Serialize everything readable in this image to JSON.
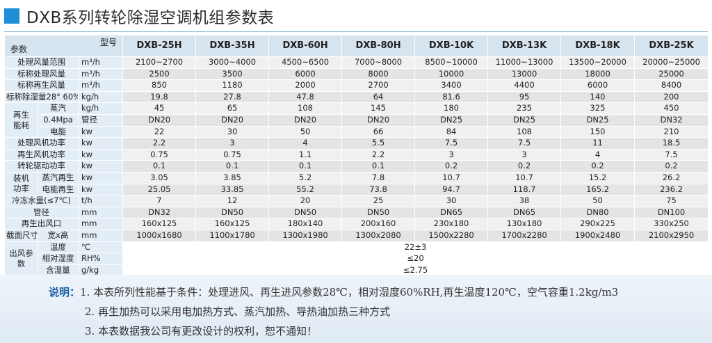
{
  "title": "DXB系列转轮除湿空调机组参数表",
  "header": {
    "param_label": "参数",
    "model_label": "型号",
    "models": [
      "DXB-25H",
      "DXB-35H",
      "DXB-60H",
      "DXB-80H",
      "DXB-10K",
      "DXB-13K",
      "DXB-18K",
      "DXB-25K"
    ]
  },
  "rows": [
    {
      "label": "处理风量范围",
      "unit": "m³/h",
      "values": [
        "2100~2700",
        "3000~4000",
        "4500~6500",
        "7000~8000",
        "8500~10000",
        "11000~13000",
        "13500~20000",
        "20000~25000"
      ]
    },
    {
      "label": "标称处理风量",
      "unit": "m³/h",
      "values": [
        "2500",
        "3500",
        "6000",
        "8000",
        "10000",
        "13000",
        "18000",
        "25000"
      ]
    },
    {
      "label": "标称再生风量",
      "unit": "m³/h",
      "values": [
        "850",
        "1180",
        "2000",
        "2700",
        "3400",
        "4400",
        "6000",
        "8400"
      ]
    },
    {
      "label": "标称除湿量28° 60%",
      "unit": "kg/h",
      "values": [
        "19.8",
        "27.8",
        "47.8",
        "64",
        "81.6",
        "95",
        "140",
        "200"
      ]
    },
    {
      "group": "再生\n能耗",
      "sub": "蒸汽",
      "unit": "kg/h",
      "values": [
        "45",
        "65",
        "108",
        "145",
        "180",
        "235",
        "325",
        "450"
      ]
    },
    {
      "sub": "0.4Mpa",
      "unit": "管径",
      "values": [
        "DN20",
        "DN20",
        "DN20",
        "DN20",
        "DN25",
        "DN25",
        "DN25",
        "DN32"
      ]
    },
    {
      "sub": "电能",
      "unit": "kw",
      "values": [
        "22",
        "30",
        "50",
        "66",
        "84",
        "108",
        "150",
        "210"
      ]
    },
    {
      "label": "处理风机功率",
      "unit": "kw",
      "values": [
        "2.2",
        "3",
        "4",
        "5.5",
        "7.5",
        "7.5",
        "11",
        "18.5"
      ]
    },
    {
      "label": "再生风机功率",
      "unit": "kw",
      "values": [
        "0.75",
        "0.75",
        "1.1",
        "2.2",
        "3",
        "3",
        "4",
        "7.5"
      ]
    },
    {
      "label": "转轮驱动功率",
      "unit": "kw",
      "values": [
        "0.1",
        "0.1",
        "0.1",
        "0.1",
        "0.2",
        "0.2",
        "0.2",
        "0.2"
      ]
    },
    {
      "group": "装机\n功率",
      "sub": "蒸汽再生",
      "unit": "kw",
      "values": [
        "3.05",
        "3.85",
        "5.2",
        "7.8",
        "10.7",
        "10.7",
        "15.2",
        "26.2"
      ]
    },
    {
      "sub": "电能再生",
      "unit": "kw",
      "values": [
        "25.05",
        "33.85",
        "55.2",
        "73.8",
        "94.7",
        "118.7",
        "165.2",
        "236.2"
      ]
    },
    {
      "label": "冷冻水量(≤7℃)",
      "unit": "t/h",
      "values": [
        "7",
        "12",
        "20",
        "25",
        "30",
        "38",
        "50",
        "75"
      ]
    },
    {
      "label": "管径",
      "unit": "mm",
      "values": [
        "DN32",
        "DN50",
        "DN50",
        "DN50",
        "DN65",
        "DN65",
        "DN80",
        "DN100"
      ]
    },
    {
      "label": "再生出风口",
      "unit": "mm",
      "values": [
        "160x125",
        "160x125",
        "180x140",
        "200x160",
        "230x180",
        "130x180",
        "290x225",
        "330x250"
      ]
    },
    {
      "label": "截面尺寸",
      "sub": "宽x高",
      "unit": "mm",
      "values": [
        "1000x1680",
        "1100x1780",
        "1300x1980",
        "1300x2080",
        "1500x2280",
        "1700x2280",
        "1900x2480",
        "2100x2950"
      ]
    },
    {
      "group": "出风参数",
      "sub": "温度",
      "unit": "℃",
      "merged": "22±3"
    },
    {
      "sub": "相对湿度",
      "unit": "RH%",
      "merged": "≤20"
    },
    {
      "sub": "含湿量",
      "unit": "g/kg",
      "merged": "≤2.75"
    }
  ],
  "notes": {
    "head": "说明：",
    "lines": [
      "1. 本表所列性能基于条件：处理进风、再生进风参数28℃，相对湿度60%RH,再生温度120℃，空气容重1.2kg/m3",
      "2. 再生加热可以采用电加热方式、蒸汽加热、导热油加热三种方式",
      "3. 本表数据我公司有更改设计的权利，恕不通知！"
    ]
  },
  "colors": {
    "accent": "#1c8fd6",
    "note_head": "#1a5fa8"
  }
}
